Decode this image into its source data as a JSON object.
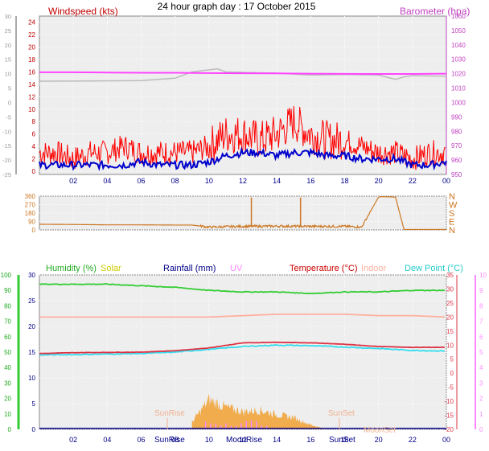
{
  "page_title": "24 hour graph day : 17 October 2015",
  "panels": {
    "wind": {
      "left_label": "Windspeed (kts)",
      "right_label": "Barometer (hpa)",
      "outer_axis_ticks": [
        "-25",
        "-20",
        "-15",
        "-10",
        "-5",
        "0",
        "5",
        "10",
        "15",
        "20",
        "25",
        "30"
      ],
      "kts_ticks": [
        "0",
        "2",
        "4",
        "6",
        "8",
        "10",
        "12",
        "14",
        "16",
        "18",
        "20",
        "22",
        "24"
      ],
      "hpa_ticks": [
        "950",
        "960",
        "970",
        "980",
        "990",
        "1000",
        "1010",
        "1020",
        "1030",
        "1040",
        "1050",
        "1060"
      ]
    },
    "direction": {
      "deg_ticks": [
        "0",
        "90",
        "180",
        "270",
        "360"
      ],
      "compass_ticks": [
        "N",
        "E",
        "S",
        "W",
        "N"
      ]
    },
    "climate": {
      "labels": {
        "humidity": "Humidity (%)",
        "solar": "Solar",
        "rainfall": "Rainfall (mm)",
        "uv": "UV",
        "temperature": "Temperature (°C)",
        "indoor": "Indoor",
        "dewpoint": "Dew Point (°C)"
      },
      "humidity_ticks": [
        "0",
        "10",
        "20",
        "30",
        "40",
        "50",
        "60",
        "70",
        "80",
        "90",
        "100"
      ],
      "rain_ticks": [
        "0",
        "5",
        "10",
        "15",
        "20",
        "25",
        "30"
      ],
      "temp_ticks": [
        "-20",
        "-15",
        "-10",
        "-5",
        "0",
        "5",
        "10",
        "15",
        "20",
        "25",
        "30",
        "35"
      ],
      "uv_ticks": [
        "0",
        "1",
        "2",
        "3",
        "4",
        "5",
        "6",
        "7",
        "8",
        "9",
        "10"
      ],
      "event_labels": {
        "sunrise_top": "SunRise",
        "sunset_top": "SunSet",
        "moonset_top": "MoonSet",
        "sunrise_axis": "SunRise",
        "moonrise_axis": "MoonRise",
        "sunset_axis": "SunSet"
      }
    }
  },
  "x_ticks": [
    "02",
    "04",
    "06",
    "08",
    "10",
    "12",
    "14",
    "16",
    "18",
    "20",
    "22",
    "00"
  ],
  "colors": {
    "wind_label": "#c00000",
    "baro_label": "#c040c0",
    "wind_avg": "#0000cc",
    "wind_gust": "#ff0000",
    "barometer": "#ff44ff",
    "barometer_alt": "#bbbbbb",
    "direction": "#cc7722",
    "humidity": "#33cc33",
    "solar": "#f0a030",
    "temperature": "#dd3344",
    "indoor": "#ffb0a0",
    "dewpoint": "#33ddee",
    "uv": "#ff88ff",
    "rainfall": "#000088"
  },
  "chart_data": [
    {
      "type": "line",
      "x_range": [
        "00",
        "00"
      ],
      "series": [
        {
          "name": "Windspeed (kts)",
          "x": [
            0,
            1,
            2,
            3,
            4,
            5,
            6,
            7,
            8,
            9,
            10,
            11,
            12,
            13,
            14,
            15,
            16,
            17,
            18,
            19,
            20,
            21,
            22,
            23,
            24
          ],
          "values": [
            1,
            1,
            1,
            1,
            1,
            1,
            1.5,
            1,
            1,
            1,
            1.5,
            2.5,
            3,
            3,
            2.5,
            3,
            3,
            2.5,
            2.5,
            2,
            2,
            2,
            1,
            1,
            1.5
          ]
        },
        {
          "name": "Gust",
          "x": [
            0,
            1,
            2,
            3,
            4,
            5,
            6,
            7,
            8,
            9,
            10,
            11,
            12,
            13,
            14,
            15,
            16,
            17,
            18,
            19,
            20,
            21,
            22,
            23,
            24
          ],
          "values": [
            3,
            3,
            2,
            3,
            3,
            4,
            3,
            3,
            3,
            3,
            4,
            6,
            6,
            5,
            6,
            8,
            6,
            5,
            5,
            4,
            3,
            3,
            2,
            3,
            3
          ]
        },
        {
          "name": "Barometer (hpa)",
          "x": [
            0,
            2,
            4,
            6,
            8,
            10,
            12,
            14,
            16,
            18,
            20,
            22,
            24
          ],
          "values": [
            1021,
            1021,
            1020.8,
            1020.6,
            1020.6,
            1020.4,
            1020.3,
            1020.2,
            1020,
            1019.9,
            1019.8,
            1019.8,
            1020
          ]
        }
      ],
      "y_range_kts": [
        0,
        25
      ],
      "y_range_hpa": [
        950,
        1060
      ]
    },
    {
      "type": "line",
      "series": [
        {
          "name": "Wind direction",
          "x": [
            0,
            2,
            4,
            6,
            8,
            9,
            10,
            12,
            14,
            16,
            18,
            19,
            20,
            20.2,
            21,
            21.5,
            24
          ],
          "values": [
            60,
            58,
            54,
            54,
            52,
            52,
            30,
            38,
            40,
            38,
            38,
            30,
            350,
            355,
            350,
            5,
            5
          ]
        }
      ],
      "y_range": [
        0,
        360
      ]
    },
    {
      "type": "line",
      "series": [
        {
          "name": "Humidity (%)",
          "x": [
            0,
            2,
            4,
            6,
            8,
            10,
            12,
            14,
            16,
            18,
            20,
            22,
            24
          ],
          "values": [
            94,
            94,
            94,
            93,
            92,
            90,
            89,
            89,
            88,
            89,
            89,
            90,
            90
          ]
        },
        {
          "name": "Temperature (°C)",
          "x": [
            0,
            2,
            4,
            6,
            8,
            10,
            12,
            14,
            16,
            18,
            20,
            22,
            24
          ],
          "values": [
            7,
            7.3,
            7.4,
            7.5,
            8,
            9,
            10.8,
            11,
            10.8,
            10.3,
            9.5,
            9.2,
            9.2
          ]
        },
        {
          "name": "Indoor",
          "x": [
            0,
            2,
            4,
            6,
            8,
            10,
            12,
            14,
            16,
            18,
            20,
            22,
            24
          ],
          "values": [
            20,
            20,
            20,
            20,
            20,
            20,
            20.5,
            21,
            21,
            21,
            20.5,
            20.5,
            20
          ]
        },
        {
          "name": "Dew Point (°C)",
          "x": [
            0,
            2,
            4,
            6,
            8,
            10,
            12,
            14,
            16,
            18,
            20,
            22,
            24
          ],
          "values": [
            6.5,
            6.6,
            6.8,
            7,
            7.5,
            8.5,
            9.5,
            10,
            9.8,
            9.3,
            8.8,
            8.1,
            7.9
          ]
        },
        {
          "name": "Solar",
          "x": [
            9,
            10,
            11,
            12,
            13,
            14,
            15,
            16,
            17
          ],
          "values": [
            0.5,
            2,
            1.5,
            1.2,
            1.3,
            1,
            0.8,
            0.3,
            0
          ]
        },
        {
          "name": "Rainfall (mm)",
          "x": [
            0,
            24
          ],
          "values": [
            0,
            0
          ]
        }
      ],
      "y_range_humidity": [
        0,
        100
      ],
      "y_range_temp": [
        -20,
        35
      ]
    }
  ]
}
